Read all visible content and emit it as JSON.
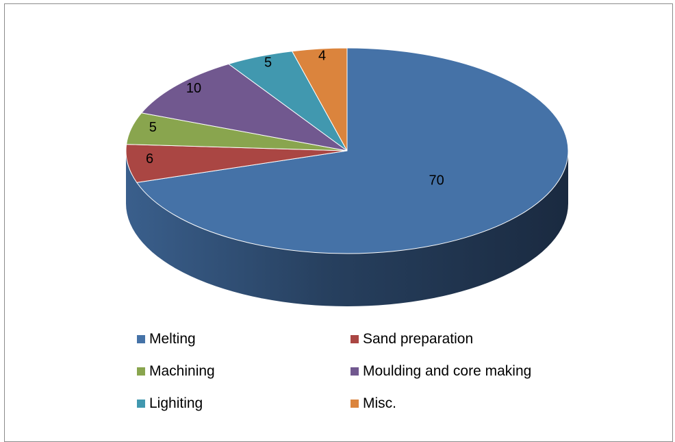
{
  "chart_data": {
    "type": "pie",
    "style": "3d",
    "title": "",
    "categories": [
      "Melting",
      "Sand preparation",
      "Machining",
      "Moulding and core making",
      "Lighiting",
      "Misc."
    ],
    "values": [
      70,
      6,
      5,
      10,
      5,
      4
    ],
    "data_labels": [
      "70",
      "6",
      "5",
      "10",
      "5",
      "4"
    ],
    "colors": [
      "#4572A7",
      "#AA4643",
      "#89A54E",
      "#71588F",
      "#4198AF",
      "#DB843D"
    ],
    "legend_position": "bottom",
    "legend": [
      {
        "label": "Melting",
        "color": "#4572A7"
      },
      {
        "label": "Sand preparation",
        "color": "#AA4643"
      },
      {
        "label": "Machining",
        "color": "#89A54E"
      },
      {
        "label": "Moulding and core making",
        "color": "#71588F"
      },
      {
        "label": "Lighiting",
        "color": "#4198AF"
      },
      {
        "label": "Misc.",
        "color": "#DB843D"
      }
    ]
  }
}
